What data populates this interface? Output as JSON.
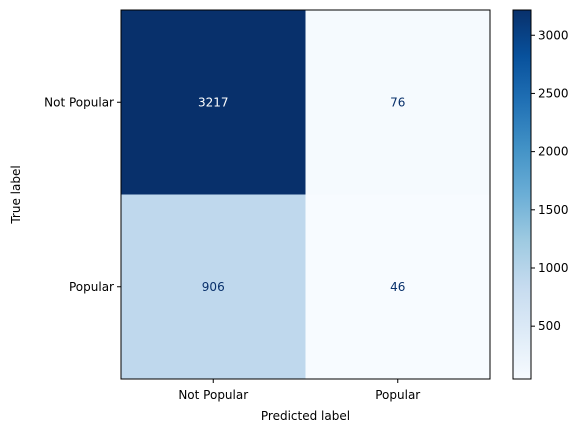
{
  "chart_data": {
    "type": "heatmap",
    "title": "",
    "xlabel": "Predicted label",
    "ylabel": "True label",
    "x_categories": [
      "Not Popular",
      "Popular"
    ],
    "y_categories": [
      "Not Popular",
      "Popular"
    ],
    "matrix": [
      [
        3217,
        76
      ],
      [
        906,
        46
      ]
    ],
    "colormap": "Blues",
    "colorbar": {
      "min": 46,
      "max": 3217,
      "ticks": [
        500,
        1000,
        1500,
        2000,
        2500,
        3000
      ],
      "tick_labels": [
        "500",
        "1000",
        "1500",
        "2000",
        "2500",
        "3000"
      ]
    },
    "colors": {
      "dark_cell": "#08306b",
      "mid_cell": "#c0d8ed",
      "light_cell": "#f7fbff",
      "text_on_dark": "#ffffff",
      "text_on_light": "#08306b"
    }
  }
}
